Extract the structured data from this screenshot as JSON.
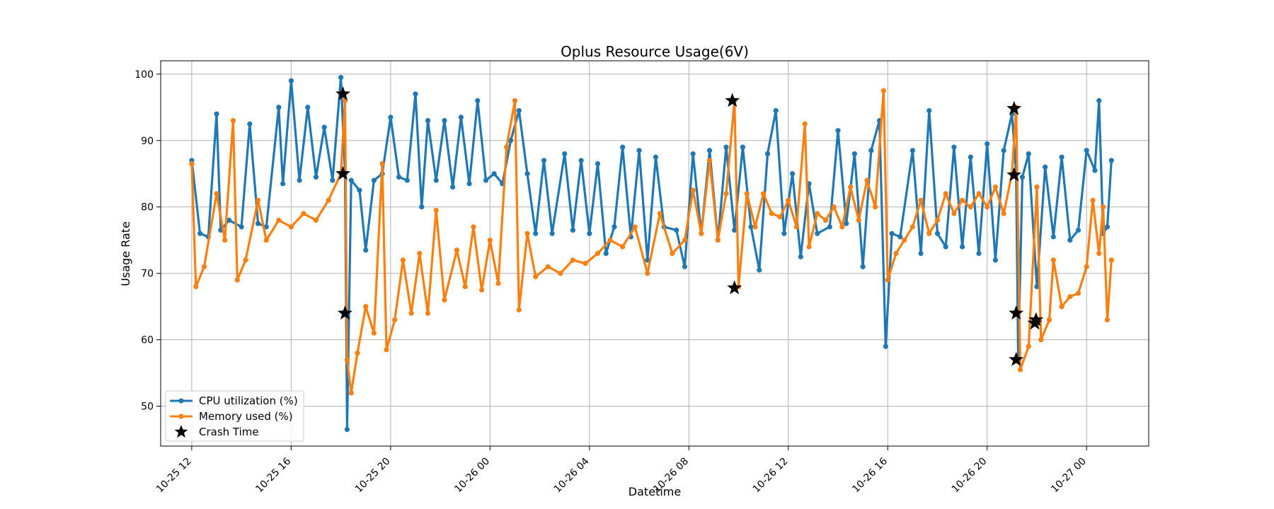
{
  "chart_data": {
    "type": "line",
    "title": "Oplus Resource Usage(6V)",
    "xlabel": "Datetime",
    "ylabel": "Usage Rate",
    "x_range": [
      "2023-10-25 10:45",
      "2023-10-27 02:30"
    ],
    "ylim": [
      44,
      102
    ],
    "x_ticks": [
      {
        "t": "2023-10-25 12:00",
        "label": "10-25 12"
      },
      {
        "t": "2023-10-25 16:00",
        "label": "10-25 16"
      },
      {
        "t": "2023-10-25 20:00",
        "label": "10-25 20"
      },
      {
        "t": "2023-10-26 00:00",
        "label": "10-26 00"
      },
      {
        "t": "2023-10-26 04:00",
        "label": "10-26 04"
      },
      {
        "t": "2023-10-26 08:00",
        "label": "10-26 08"
      },
      {
        "t": "2023-10-26 12:00",
        "label": "10-26 12"
      },
      {
        "t": "2023-10-26 16:00",
        "label": "10-26 16"
      },
      {
        "t": "2023-10-26 20:00",
        "label": "10-26 20"
      },
      {
        "t": "2023-10-27 00:00",
        "label": "10-27 00"
      }
    ],
    "y_ticks": [
      50,
      60,
      70,
      80,
      90,
      100
    ],
    "grid": true,
    "legend_position": "lower-left",
    "series": [
      {
        "name": "CPU utilization (%)",
        "color": "#1f77b4",
        "marker": "circle",
        "points": [
          [
            "2023-10-25 12:00",
            87.0
          ],
          [
            "2023-10-25 12:20",
            76.0
          ],
          [
            "2023-10-25 12:40",
            75.5
          ],
          [
            "2023-10-25 13:00",
            94.0
          ],
          [
            "2023-10-25 13:10",
            76.5
          ],
          [
            "2023-10-25 13:30",
            78.0
          ],
          [
            "2023-10-25 14:00",
            77.0
          ],
          [
            "2023-10-25 14:20",
            92.5
          ],
          [
            "2023-10-25 14:40",
            77.5
          ],
          [
            "2023-10-25 15:00",
            77.0
          ],
          [
            "2023-10-25 15:30",
            95.0
          ],
          [
            "2023-10-25 15:40",
            83.5
          ],
          [
            "2023-10-25 16:00",
            99.0
          ],
          [
            "2023-10-25 16:20",
            84.0
          ],
          [
            "2023-10-25 16:40",
            95.0
          ],
          [
            "2023-10-25 17:00",
            84.5
          ],
          [
            "2023-10-25 17:20",
            92.0
          ],
          [
            "2023-10-25 17:40",
            84.0
          ],
          [
            "2023-10-25 18:00",
            99.5
          ],
          [
            "2023-10-25 18:10",
            85.0
          ],
          [
            "2023-10-25 18:15",
            46.5
          ],
          [
            "2023-10-25 18:25",
            84.0
          ],
          [
            "2023-10-25 18:45",
            82.5
          ],
          [
            "2023-10-25 19:00",
            73.5
          ],
          [
            "2023-10-25 19:20",
            84.0
          ],
          [
            "2023-10-25 19:40",
            85.0
          ],
          [
            "2023-10-25 20:00",
            93.5
          ],
          [
            "2023-10-25 20:20",
            84.5
          ],
          [
            "2023-10-25 20:40",
            84.0
          ],
          [
            "2023-10-25 21:00",
            97.0
          ],
          [
            "2023-10-25 21:15",
            80.0
          ],
          [
            "2023-10-25 21:30",
            93.0
          ],
          [
            "2023-10-25 21:50",
            84.0
          ],
          [
            "2023-10-25 22:10",
            93.0
          ],
          [
            "2023-10-25 22:30",
            83.0
          ],
          [
            "2023-10-25 22:50",
            93.5
          ],
          [
            "2023-10-25 23:10",
            83.5
          ],
          [
            "2023-10-25 23:30",
            96.0
          ],
          [
            "2023-10-25 23:50",
            84.0
          ],
          [
            "2023-10-26 00:10",
            85.0
          ],
          [
            "2023-10-26 00:30",
            83.5
          ],
          [
            "2023-10-26 00:50",
            90.0
          ],
          [
            "2023-10-26 01:10",
            94.5
          ],
          [
            "2023-10-26 01:30",
            85.0
          ],
          [
            "2023-10-26 01:50",
            76.0
          ],
          [
            "2023-10-26 02:10",
            87.0
          ],
          [
            "2023-10-26 02:30",
            76.0
          ],
          [
            "2023-10-26 03:00",
            88.0
          ],
          [
            "2023-10-26 03:20",
            76.5
          ],
          [
            "2023-10-26 03:40",
            87.0
          ],
          [
            "2023-10-26 04:00",
            76.0
          ],
          [
            "2023-10-26 04:20",
            86.5
          ],
          [
            "2023-10-26 04:40",
            73.0
          ],
          [
            "2023-10-26 05:00",
            77.0
          ],
          [
            "2023-10-26 05:20",
            89.0
          ],
          [
            "2023-10-26 05:40",
            75.5
          ],
          [
            "2023-10-26 06:00",
            88.5
          ],
          [
            "2023-10-26 06:20",
            72.0
          ],
          [
            "2023-10-26 06:40",
            87.5
          ],
          [
            "2023-10-26 07:00",
            77.0
          ],
          [
            "2023-10-26 07:30",
            76.5
          ],
          [
            "2023-10-26 07:50",
            71.0
          ],
          [
            "2023-10-26 08:10",
            88.0
          ],
          [
            "2023-10-26 08:30",
            76.0
          ],
          [
            "2023-10-26 08:50",
            88.5
          ],
          [
            "2023-10-26 09:10",
            75.0
          ],
          [
            "2023-10-26 09:30",
            89.0
          ],
          [
            "2023-10-26 09:50",
            76.5
          ],
          [
            "2023-10-26 10:10",
            89.0
          ],
          [
            "2023-10-26 10:30",
            77.0
          ],
          [
            "2023-10-26 10:50",
            70.5
          ],
          [
            "2023-10-26 11:10",
            88.0
          ],
          [
            "2023-10-26 11:30",
            94.5
          ],
          [
            "2023-10-26 11:50",
            76.0
          ],
          [
            "2023-10-26 12:10",
            85.0
          ],
          [
            "2023-10-26 12:30",
            72.5
          ],
          [
            "2023-10-26 12:50",
            83.5
          ],
          [
            "2023-10-26 13:10",
            76.0
          ],
          [
            "2023-10-26 13:40",
            77.0
          ],
          [
            "2023-10-26 14:00",
            91.5
          ],
          [
            "2023-10-26 14:20",
            77.5
          ],
          [
            "2023-10-26 14:40",
            88.0
          ],
          [
            "2023-10-26 15:00",
            71.0
          ],
          [
            "2023-10-26 15:20",
            88.5
          ],
          [
            "2023-10-26 15:40",
            93.0
          ],
          [
            "2023-10-26 15:55",
            59.0
          ],
          [
            "2023-10-26 16:10",
            76.0
          ],
          [
            "2023-10-26 16:30",
            75.5
          ],
          [
            "2023-10-26 17:00",
            88.5
          ],
          [
            "2023-10-26 17:20",
            73.0
          ],
          [
            "2023-10-26 17:40",
            94.5
          ],
          [
            "2023-10-26 18:00",
            76.0
          ],
          [
            "2023-10-26 18:20",
            74.0
          ],
          [
            "2023-10-26 18:40",
            89.0
          ],
          [
            "2023-10-26 19:00",
            74.0
          ],
          [
            "2023-10-26 19:20",
            87.5
          ],
          [
            "2023-10-26 19:40",
            73.0
          ],
          [
            "2023-10-26 20:00",
            89.5
          ],
          [
            "2023-10-26 20:20",
            72.0
          ],
          [
            "2023-10-26 20:40",
            88.5
          ],
          [
            "2023-10-26 21:00",
            94.0
          ],
          [
            "2023-10-26 21:10",
            85.0
          ],
          [
            "2023-10-26 21:15",
            57.0
          ],
          [
            "2023-10-26 21:25",
            84.5
          ],
          [
            "2023-10-26 21:40",
            88.0
          ],
          [
            "2023-10-26 22:00",
            68.0
          ],
          [
            "2023-10-26 22:20",
            86.0
          ],
          [
            "2023-10-26 22:40",
            75.5
          ],
          [
            "2023-10-26 23:00",
            87.5
          ],
          [
            "2023-10-26 23:20",
            75.0
          ],
          [
            "2023-10-26 23:40",
            76.5
          ],
          [
            "2023-10-27 00:00",
            88.5
          ],
          [
            "2023-10-27 00:20",
            85.5
          ],
          [
            "2023-10-27 00:30",
            96.0
          ],
          [
            "2023-10-27 00:40",
            76.0
          ],
          [
            "2023-10-27 00:50",
            77.0
          ],
          [
            "2023-10-27 01:00",
            87.0
          ]
        ]
      },
      {
        "name": "Memory used  (%)",
        "color": "#ff7f0e",
        "marker": "circle",
        "points": [
          [
            "2023-10-25 12:00",
            86.5
          ],
          [
            "2023-10-25 12:10",
            68.0
          ],
          [
            "2023-10-25 12:30",
            71.0
          ],
          [
            "2023-10-25 13:00",
            82.0
          ],
          [
            "2023-10-25 13:20",
            75.0
          ],
          [
            "2023-10-25 13:40",
            93.0
          ],
          [
            "2023-10-25 13:50",
            69.0
          ],
          [
            "2023-10-25 14:10",
            72.0
          ],
          [
            "2023-10-25 14:40",
            81.0
          ],
          [
            "2023-10-25 15:00",
            75.0
          ],
          [
            "2023-10-25 15:30",
            78.0
          ],
          [
            "2023-10-25 16:00",
            77.0
          ],
          [
            "2023-10-25 16:30",
            79.0
          ],
          [
            "2023-10-25 17:00",
            78.0
          ],
          [
            "2023-10-25 17:30",
            81.0
          ],
          [
            "2023-10-25 18:00",
            85.0
          ],
          [
            "2023-10-25 18:10",
            96.0
          ],
          [
            "2023-10-25 18:15",
            57.0
          ],
          [
            "2023-10-25 18:25",
            52.0
          ],
          [
            "2023-10-25 18:40",
            58.0
          ],
          [
            "2023-10-25 19:00",
            65.0
          ],
          [
            "2023-10-25 19:20",
            61.0
          ],
          [
            "2023-10-25 19:40",
            86.5
          ],
          [
            "2023-10-25 19:50",
            58.5
          ],
          [
            "2023-10-25 20:10",
            63.0
          ],
          [
            "2023-10-25 20:30",
            72.0
          ],
          [
            "2023-10-25 20:50",
            64.0
          ],
          [
            "2023-10-25 21:10",
            73.0
          ],
          [
            "2023-10-25 21:30",
            64.0
          ],
          [
            "2023-10-25 21:50",
            79.5
          ],
          [
            "2023-10-25 22:10",
            66.0
          ],
          [
            "2023-10-25 22:40",
            73.5
          ],
          [
            "2023-10-25 23:00",
            68.0
          ],
          [
            "2023-10-25 23:20",
            77.0
          ],
          [
            "2023-10-25 23:40",
            67.5
          ],
          [
            "2023-10-26 00:00",
            75.0
          ],
          [
            "2023-10-26 00:20",
            68.5
          ],
          [
            "2023-10-26 00:40",
            89.0
          ],
          [
            "2023-10-26 01:00",
            96.0
          ],
          [
            "2023-10-26 01:10",
            64.5
          ],
          [
            "2023-10-26 01:30",
            76.0
          ],
          [
            "2023-10-26 01:50",
            69.5
          ],
          [
            "2023-10-26 02:20",
            71.0
          ],
          [
            "2023-10-26 02:50",
            70.0
          ],
          [
            "2023-10-26 03:20",
            72.0
          ],
          [
            "2023-10-26 03:50",
            71.5
          ],
          [
            "2023-10-26 04:20",
            73.0
          ],
          [
            "2023-10-26 04:50",
            75.0
          ],
          [
            "2023-10-26 05:20",
            74.0
          ],
          [
            "2023-10-26 05:50",
            77.0
          ],
          [
            "2023-10-26 06:20",
            70.0
          ],
          [
            "2023-10-26 06:50",
            79.0
          ],
          [
            "2023-10-26 07:20",
            73.0
          ],
          [
            "2023-10-26 07:50",
            75.0
          ],
          [
            "2023-10-26 08:10",
            82.5
          ],
          [
            "2023-10-26 08:30",
            76.0
          ],
          [
            "2023-10-26 08:50",
            87.0
          ],
          [
            "2023-10-26 09:10",
            75.0
          ],
          [
            "2023-10-26 09:30",
            82.0
          ],
          [
            "2023-10-26 09:50",
            96.0
          ],
          [
            "2023-10-26 10:00",
            68.0
          ],
          [
            "2023-10-26 10:20",
            82.0
          ],
          [
            "2023-10-26 10:40",
            77.0
          ],
          [
            "2023-10-26 11:00",
            82.0
          ],
          [
            "2023-10-26 11:20",
            79.0
          ],
          [
            "2023-10-26 11:40",
            78.5
          ],
          [
            "2023-10-26 12:00",
            81.0
          ],
          [
            "2023-10-26 12:20",
            77.0
          ],
          [
            "2023-10-26 12:40",
            92.5
          ],
          [
            "2023-10-26 12:50",
            74.0
          ],
          [
            "2023-10-26 13:10",
            79.0
          ],
          [
            "2023-10-26 13:30",
            78.0
          ],
          [
            "2023-10-26 13:50",
            80.0
          ],
          [
            "2023-10-26 14:10",
            77.0
          ],
          [
            "2023-10-26 14:30",
            83.0
          ],
          [
            "2023-10-26 14:50",
            78.0
          ],
          [
            "2023-10-26 15:10",
            84.0
          ],
          [
            "2023-10-26 15:30",
            80.0
          ],
          [
            "2023-10-26 15:50",
            97.5
          ],
          [
            "2023-10-26 16:00",
            69.0
          ],
          [
            "2023-10-26 16:20",
            73.0
          ],
          [
            "2023-10-26 16:40",
            75.0
          ],
          [
            "2023-10-26 17:00",
            77.0
          ],
          [
            "2023-10-26 17:20",
            81.0
          ],
          [
            "2023-10-26 17:40",
            76.0
          ],
          [
            "2023-10-26 18:00",
            78.0
          ],
          [
            "2023-10-26 18:20",
            82.0
          ],
          [
            "2023-10-26 18:40",
            79.0
          ],
          [
            "2023-10-26 19:00",
            81.0
          ],
          [
            "2023-10-26 19:20",
            80.0
          ],
          [
            "2023-10-26 19:40",
            82.0
          ],
          [
            "2023-10-26 20:00",
            80.0
          ],
          [
            "2023-10-26 20:20",
            83.0
          ],
          [
            "2023-10-26 20:40",
            79.0
          ],
          [
            "2023-10-26 21:00",
            85.0
          ],
          [
            "2023-10-26 21:10",
            95.0
          ],
          [
            "2023-10-26 21:20",
            55.5
          ],
          [
            "2023-10-26 21:40",
            59.0
          ],
          [
            "2023-10-26 22:00",
            83.0
          ],
          [
            "2023-10-26 22:10",
            60.0
          ],
          [
            "2023-10-26 22:30",
            63.0
          ],
          [
            "2023-10-26 22:40",
            72.0
          ],
          [
            "2023-10-26 23:00",
            65.0
          ],
          [
            "2023-10-26 23:20",
            66.5
          ],
          [
            "2023-10-26 23:40",
            67.0
          ],
          [
            "2023-10-27 00:00",
            71.0
          ],
          [
            "2023-10-27 00:15",
            81.0
          ],
          [
            "2023-10-27 00:30",
            73.0
          ],
          [
            "2023-10-27 00:40",
            80.0
          ],
          [
            "2023-10-27 00:50",
            63.0
          ],
          [
            "2023-10-27 01:00",
            72.0
          ]
        ]
      },
      {
        "name": "Crash Time",
        "color": "#000000",
        "marker": "star",
        "points": [
          [
            "2023-10-25 18:05",
            97.0
          ],
          [
            "2023-10-25 18:05",
            85.0
          ],
          [
            "2023-10-25 18:10",
            64.0
          ],
          [
            "2023-10-26 09:45",
            96.0
          ],
          [
            "2023-10-26 09:50",
            67.8
          ],
          [
            "2023-10-26 21:05",
            94.8
          ],
          [
            "2023-10-26 21:05",
            84.8
          ],
          [
            "2023-10-26 21:10",
            64.0
          ],
          [
            "2023-10-26 21:10",
            57.0
          ],
          [
            "2023-10-26 21:55",
            62.5
          ],
          [
            "2023-10-26 21:58",
            63.0
          ]
        ]
      }
    ]
  }
}
